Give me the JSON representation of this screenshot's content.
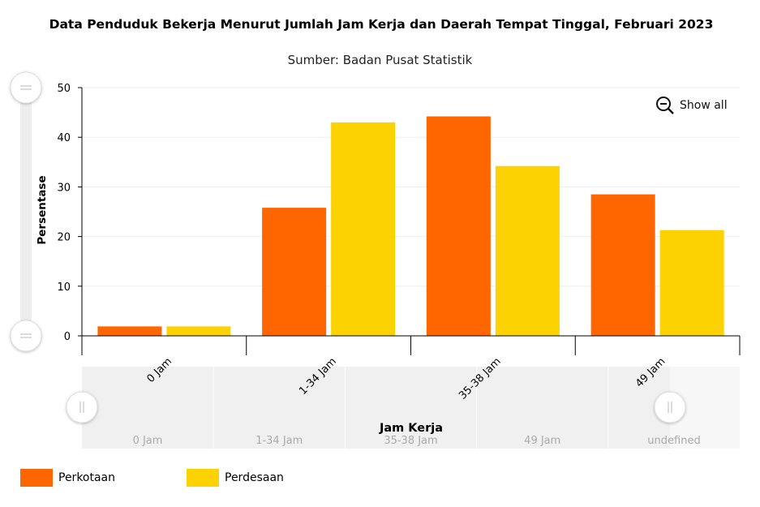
{
  "title": "Data Penduduk Bekerja Menurut Jumlah Jam Kerja dan  Daerah Tempat Tinggal, Februari 2023",
  "subtitle": "Sumber: Badan Pusat Statistik",
  "show_all_label": "Show all",
  "colors": {
    "perkotaan": "#FF6600",
    "perdesaan": "#FCD202"
  },
  "chart_data": {
    "type": "bar",
    "title": "Data Penduduk Bekerja Menurut Jumlah Jam Kerja dan  Daerah Tempat Tinggal, Februari 2023",
    "subtitle": "Sumber: Badan Pusat Statistik",
    "xlabel": "Jam Kerja",
    "ylabel": "Persentase",
    "ylim": [
      0,
      50
    ],
    "yticks": [
      0,
      10,
      20,
      30,
      40,
      50
    ],
    "categories": [
      "0 Jam",
      "1-34 Jam",
      "35-38 Jam",
      "49 Jam"
    ],
    "series": [
      {
        "name": "Perkotaan",
        "values": [
          1.9,
          25.8,
          44.2,
          28.5
        ]
      },
      {
        "name": "Perdesaan",
        "values": [
          1.9,
          43.0,
          34.2,
          21.3
        ]
      }
    ],
    "scrollbar_labels": [
      "0 Jam",
      "1-34 Jam",
      "35-38 Jam",
      "49 Jam",
      "undefined"
    ],
    "legend_position": "bottom-left",
    "grid": true
  }
}
